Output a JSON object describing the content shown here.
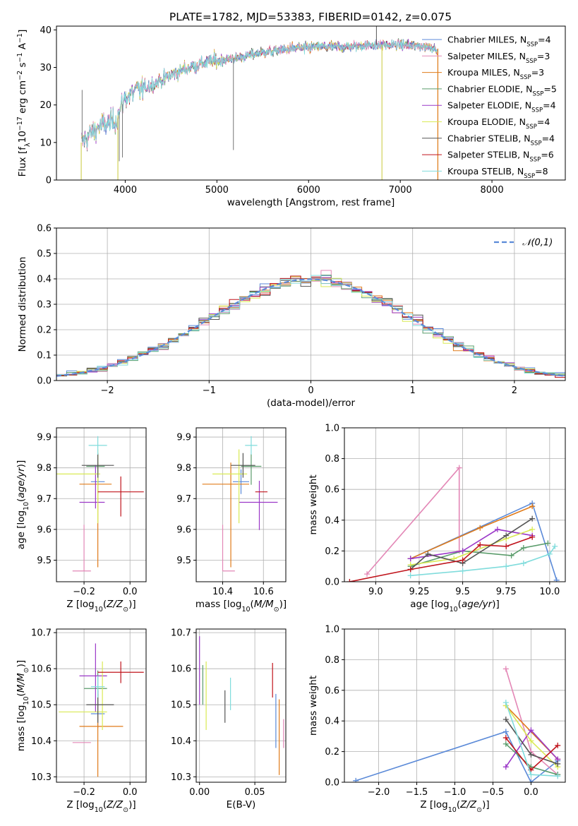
{
  "figure_title": "PLATE=1782, MJD=53383, FIBERID=0142, z=0.075",
  "colors": {
    "Chabrier MILES": "#5b8ad8",
    "Salpeter MILES": "#e387b6",
    "Kroupa MILES": "#e07b1a",
    "Chabrier ELODIE": "#5a9c6b",
    "Salpeter ELODIE": "#9b38c8",
    "Kroupa ELODIE": "#d9ea55",
    "Chabrier STELIB": "#555555",
    "Salpeter STELIB": "#c0141c",
    "Kroupa STELIB": "#80dcdc"
  },
  "chart_data": [
    {
      "id": "spectrum",
      "type": "line",
      "xlabel": "wavelength [Angstrom, rest frame]",
      "ylabel": "Flux [f_λ10^-17 erg cm^-2 s^-1 A^-1]",
      "xlim": [
        3250,
        8800
      ],
      "ylim": [
        0,
        41
      ],
      "xticks": [
        4000,
        5000,
        6000,
        7000,
        8000
      ],
      "yticks": [
        0,
        10,
        20,
        30,
        40
      ],
      "grid": false,
      "legend_position": "right",
      "legend": [
        {
          "name": "Chabrier MILES",
          "nssp": 4
        },
        {
          "name": "Salpeter MILES",
          "nssp": 3
        },
        {
          "name": "Kroupa MILES",
          "nssp": 3
        },
        {
          "name": "Chabrier ELODIE",
          "nssp": 5
        },
        {
          "name": "Salpeter ELODIE",
          "nssp": 4
        },
        {
          "name": "Kroupa ELODIE",
          "nssp": 4
        },
        {
          "name": "Chabrier STELIB",
          "nssp": 4
        },
        {
          "name": "Salpeter STELIB",
          "nssp": 6
        },
        {
          "name": "Kroupa STELIB",
          "nssp": 8
        }
      ],
      "continuum": {
        "x": [
          3520,
          3700,
          3900,
          4000,
          4100,
          4300,
          4500,
          4700,
          4900,
          5100,
          5300,
          5500,
          5800,
          6100,
          6400,
          6700,
          7000,
          7300,
          7400
        ],
        "y": [
          10,
          14,
          16,
          22,
          23.5,
          25.5,
          28,
          30,
          31.5,
          32,
          33,
          34,
          35,
          35.5,
          35.5,
          36,
          36,
          35.5,
          35
        ]
      },
      "features": [
        {
          "x": 3520,
          "y": 0
        },
        {
          "x": 3530,
          "y": 24
        },
        {
          "x": 3920,
          "y": 0
        },
        {
          "x": 3935,
          "y": 5
        },
        {
          "x": 3970,
          "y": 6
        },
        {
          "x": 5180,
          "y": 8
        },
        {
          "x": 6740,
          "y": 41
        },
        {
          "x": 6800,
          "y": 0
        },
        {
          "x": 7410,
          "y": 0
        }
      ]
    },
    {
      "id": "residuals",
      "type": "step",
      "xlabel": "(data-model)/error",
      "ylabel": "Normed distribution",
      "xlim": [
        -2.5,
        2.5
      ],
      "ylim": [
        0,
        0.6
      ],
      "xticks": [
        -2,
        -1,
        0,
        1,
        2
      ],
      "yticks": [
        0.0,
        0.1,
        0.2,
        0.3,
        0.4,
        0.5,
        0.6
      ],
      "grid": true,
      "legend_position": "top-right",
      "reference": {
        "label": "𝒩(0,1)",
        "type": "gaussian",
        "mean": 0,
        "sigma": 1
      }
    },
    {
      "id": "age_vs_Z",
      "type": "errorbar",
      "xlabel": "Z [log10(Z/Z⊙)]",
      "ylabel": "age [log10(age/yr)]",
      "xlim": [
        -0.32,
        0.07
      ],
      "ylim": [
        9.43,
        9.93
      ],
      "xticks": [
        -0.2,
        0.0
      ],
      "yticks": [
        9.5,
        9.6,
        9.7,
        9.8,
        9.9
      ],
      "grid": true,
      "points": [
        {
          "series": "Chabrier MILES",
          "x": -0.14,
          "y": 9.755,
          "xerr": [
            0.03,
            0.03
          ],
          "yerr": [
            0.04,
            0.04
          ]
        },
        {
          "series": "Salpeter MILES",
          "x": -0.2,
          "y": 9.465,
          "xerr": [
            0.05,
            0.03
          ],
          "yerr": [
            0.0,
            0.15
          ]
        },
        {
          "series": "Kroupa MILES",
          "x": -0.14,
          "y": 9.747,
          "xerr": [
            0.08,
            0.06
          ],
          "yerr": [
            0.27,
            0.07
          ]
        },
        {
          "series": "Chabrier ELODIE",
          "x": -0.14,
          "y": 9.805,
          "xerr": [
            0.05,
            0.03
          ],
          "yerr": [
            0.06,
            0.04
          ]
        },
        {
          "series": "Salpeter ELODIE",
          "x": -0.15,
          "y": 9.688,
          "xerr": [
            0.07,
            0.04
          ],
          "yerr": [
            0.02,
            0.12
          ]
        },
        {
          "series": "Kroupa ELODIE",
          "x": -0.14,
          "y": 9.78,
          "xerr": [
            0.18,
            0.01
          ],
          "yerr": [
            0.16,
            0.08
          ]
        },
        {
          "series": "Chabrier STELIB",
          "x": -0.14,
          "y": 9.808,
          "xerr": [
            0.07,
            0.07
          ],
          "yerr": [
            0.04,
            0.04
          ]
        },
        {
          "series": "Salpeter STELIB",
          "x": -0.04,
          "y": 9.722,
          "xerr": [
            0.1,
            0.1
          ],
          "yerr": [
            0.08,
            0.05
          ]
        },
        {
          "series": "Kroupa STELIB",
          "x": -0.14,
          "y": 9.873,
          "xerr": [
            0.04,
            0.04
          ],
          "yerr": [
            0.03,
            0.03
          ]
        }
      ]
    },
    {
      "id": "age_vs_mass",
      "type": "errorbar",
      "xlabel": "mass [log10(M/M⊙)]",
      "ylabel": "",
      "xlim": [
        10.27,
        10.71
      ],
      "ylim": [
        9.43,
        9.93
      ],
      "xticks": [
        10.4,
        10.6
      ],
      "yticks": [
        9.5,
        9.6,
        9.7,
        9.8,
        9.9
      ],
      "grid": true,
      "points": [
        {
          "series": "Chabrier MILES",
          "x": 10.49,
          "y": 9.755,
          "xerr": [
            0.04,
            0.04
          ],
          "yerr": [
            0.04,
            0.04
          ]
        },
        {
          "series": "Salpeter MILES",
          "x": 10.4,
          "y": 9.465,
          "xerr": [
            0.0,
            0.06
          ],
          "yerr": [
            0.0,
            0.15
          ]
        },
        {
          "series": "Kroupa MILES",
          "x": 10.44,
          "y": 9.747,
          "xerr": [
            0.14,
            0.09
          ],
          "yerr": [
            0.27,
            0.07
          ]
        },
        {
          "series": "Chabrier ELODIE",
          "x": 10.54,
          "y": 9.805,
          "xerr": [
            0.05,
            0.05
          ],
          "yerr": [
            0.06,
            0.04
          ]
        },
        {
          "series": "Salpeter ELODIE",
          "x": 10.58,
          "y": 9.688,
          "xerr": [
            0.1,
            0.09
          ],
          "yerr": [
            0.09,
            0.07
          ]
        },
        {
          "series": "Kroupa ELODIE",
          "x": 10.48,
          "y": 9.78,
          "xerr": [
            0.13,
            0.04
          ],
          "yerr": [
            0.16,
            0.08
          ]
        },
        {
          "series": "Chabrier STELIB",
          "x": 10.5,
          "y": 9.808,
          "xerr": [
            0.06,
            0.06
          ],
          "yerr": [
            0.04,
            0.04
          ]
        },
        {
          "series": "Salpeter STELIB",
          "x": 10.59,
          "y": 9.722,
          "xerr": [
            0.03,
            0.03
          ],
          "yerr": [
            0.0,
            0.0
          ]
        },
        {
          "series": "Kroupa STELIB",
          "x": 10.54,
          "y": 9.873,
          "xerr": [
            0.03,
            0.03
          ],
          "yerr": [
            0.03,
            0.03
          ]
        }
      ]
    },
    {
      "id": "weight_vs_age",
      "type": "line",
      "xlabel": "age [log10(age/yr)]",
      "ylabel": "mass weight",
      "xlim": [
        8.82,
        10.09
      ],
      "ylim": [
        0,
        1
      ],
      "xticks": [
        9.0,
        9.25,
        9.5,
        9.75,
        10.0
      ],
      "yticks": [
        0.0,
        0.2,
        0.4,
        0.6,
        0.8,
        1.0
      ],
      "grid": true,
      "series": [
        {
          "name": "Chabrier MILES",
          "x": [
            9.2,
            9.9,
            10.04
          ],
          "y": [
            0.15,
            0.51,
            0.01
          ]
        },
        {
          "name": "Salpeter MILES",
          "x": [
            8.95,
            9.48,
            9.48
          ],
          "y": [
            0.05,
            0.74,
            0.2
          ]
        },
        {
          "name": "Kroupa MILES",
          "x": [
            9.2,
            9.6,
            9.9
          ],
          "y": [
            0.15,
            0.35,
            0.49
          ]
        },
        {
          "name": "Chabrier ELODIE",
          "x": [
            9.2,
            9.5,
            9.78,
            9.85,
            9.99
          ],
          "y": [
            0.1,
            0.2,
            0.17,
            0.22,
            0.25
          ]
        },
        {
          "name": "Salpeter ELODIE",
          "x": [
            9.2,
            9.5,
            9.7,
            9.9
          ],
          "y": [
            0.15,
            0.2,
            0.34,
            0.3
          ]
        },
        {
          "name": "Kroupa ELODIE",
          "x": [
            9.2,
            9.45,
            9.75,
            9.9
          ],
          "y": [
            0.11,
            0.15,
            0.28,
            0.34
          ]
        },
        {
          "name": "Chabrier STELIB",
          "x": [
            9.2,
            9.3,
            9.5,
            9.75,
            9.9
          ],
          "y": [
            0.08,
            0.18,
            0.12,
            0.3,
            0.41
          ]
        },
        {
          "name": "Salpeter STELIB",
          "x": [
            8.85,
            9.2,
            9.5,
            9.6,
            9.75,
            9.9
          ],
          "y": [
            0.0,
            0.08,
            0.14,
            0.24,
            0.23,
            0.29
          ]
        },
        {
          "name": "Kroupa STELIB",
          "x": [
            9.2,
            9.5,
            9.75,
            9.85,
            10.0,
            10.03
          ],
          "y": [
            0.04,
            0.07,
            0.1,
            0.12,
            0.18,
            0.23
          ]
        }
      ]
    },
    {
      "id": "mass_vs_Z",
      "type": "errorbar",
      "xlabel": "Z [log10(Z/Z⊙)]",
      "ylabel": "mass [log10(M/M⊙)]",
      "xlim": [
        -0.32,
        0.07
      ],
      "ylim": [
        10.285,
        10.71
      ],
      "xticks": [
        -0.2,
        0.0
      ],
      "yticks": [
        10.3,
        10.4,
        10.5,
        10.6,
        10.7
      ],
      "grid": true,
      "points": [
        {
          "series": "Chabrier MILES",
          "x": -0.14,
          "y": 10.475,
          "xerr": [
            0.03,
            0.03
          ],
          "yerr": [
            0.04,
            0.04
          ]
        },
        {
          "series": "Salpeter MILES",
          "x": -0.2,
          "y": 10.395,
          "xerr": [
            0.05,
            0.03
          ],
          "yerr": [
            0.0,
            0.0
          ]
        },
        {
          "series": "Kroupa MILES",
          "x": -0.14,
          "y": 10.44,
          "xerr": [
            0.08,
            0.11
          ],
          "yerr": [
            0.14,
            0.09
          ]
        },
        {
          "series": "Chabrier ELODIE",
          "x": -0.14,
          "y": 10.545,
          "xerr": [
            0.06,
            0.04
          ],
          "yerr": [
            0.05,
            0.05
          ]
        },
        {
          "series": "Salpeter ELODIE",
          "x": -0.15,
          "y": 10.58,
          "xerr": [
            0.07,
            0.05
          ],
          "yerr": [
            0.1,
            0.09
          ]
        },
        {
          "series": "Kroupa ELODIE",
          "x": -0.12,
          "y": 10.48,
          "xerr": [
            0.19,
            0.02
          ],
          "yerr": [
            0.05,
            0.14
          ]
        },
        {
          "series": "Chabrier STELIB",
          "x": -0.14,
          "y": 10.5,
          "xerr": [
            0.05,
            0.07
          ],
          "yerr": [
            0.05,
            0.04
          ]
        },
        {
          "series": "Salpeter STELIB",
          "x": -0.04,
          "y": 10.59,
          "xerr": [
            0.1,
            0.1
          ],
          "yerr": [
            0.03,
            0.03
          ]
        },
        {
          "series": "Kroupa STELIB",
          "x": -0.14,
          "y": 10.55,
          "xerr": [
            0.03,
            0.03
          ],
          "yerr": [
            0.03,
            0.03
          ]
        }
      ]
    },
    {
      "id": "mass_vs_EBV",
      "type": "errorbar",
      "xlabel": "E(B-V)",
      "ylabel": "",
      "xlim": [
        -0.003,
        0.078
      ],
      "ylim": [
        10.285,
        10.71
      ],
      "xticks": [
        0.0,
        0.05
      ],
      "xticklabels": [
        "0.00",
        "0.05"
      ],
      "yticks": [
        10.3,
        10.4,
        10.5,
        10.6,
        10.7
      ],
      "grid": true,
      "points": [
        {
          "series": "Salpeter ELODIE",
          "x": 0.0,
          "y": 10.6,
          "xerr": [
            0,
            0
          ],
          "yerr": [
            0.1,
            0.09
          ]
        },
        {
          "series": "Chabrier ELODIE",
          "x": 0.003,
          "y": 10.555,
          "xerr": [
            0,
            0
          ],
          "yerr": [
            0.055,
            0.055
          ]
        },
        {
          "series": "Kroupa ELODIE",
          "x": 0.006,
          "y": 10.525,
          "xerr": [
            0,
            0
          ],
          "yerr": [
            0.095,
            0.095
          ]
        },
        {
          "series": "Chabrier STELIB",
          "x": 0.023,
          "y": 10.495,
          "xerr": [
            0,
            0
          ],
          "yerr": [
            0.045,
            0.045
          ]
        },
        {
          "series": "Kroupa STELIB",
          "x": 0.028,
          "y": 10.53,
          "xerr": [
            0,
            0
          ],
          "yerr": [
            0.045,
            0.045
          ]
        },
        {
          "series": "Salpeter STELIB",
          "x": 0.066,
          "y": 10.568,
          "xerr": [
            0,
            0
          ],
          "yerr": [
            0.048,
            0.048
          ]
        },
        {
          "series": "Chabrier MILES",
          "x": 0.069,
          "y": 10.455,
          "xerr": [
            0,
            0
          ],
          "yerr": [
            0.075,
            0.075
          ]
        },
        {
          "series": "Kroupa MILES",
          "x": 0.072,
          "y": 10.41,
          "xerr": [
            0,
            0
          ],
          "yerr": [
            0.105,
            0.105
          ]
        },
        {
          "series": "Salpeter MILES",
          "x": 0.076,
          "y": 10.42,
          "xerr": [
            0,
            0
          ],
          "yerr": [
            0.04,
            0.04
          ]
        }
      ]
    },
    {
      "id": "weight_vs_Z",
      "type": "line",
      "xlabel": "Z [log10(Z/Z⊙)]",
      "ylabel": "mass weight",
      "xlim": [
        -2.45,
        0.45
      ],
      "ylim": [
        0,
        1
      ],
      "xticks": [
        -2.0,
        -1.5,
        -1.0,
        -0.5,
        0.0
      ],
      "yticks": [
        0.0,
        0.2,
        0.4,
        0.6,
        0.8,
        1.0
      ],
      "grid": true,
      "series": [
        {
          "name": "Chabrier MILES",
          "x": [
            -2.3,
            -0.33,
            0.0,
            0.35
          ],
          "y": [
            0.01,
            0.33,
            0.0,
            0.14
          ]
        },
        {
          "name": "Salpeter MILES",
          "x": [
            -0.33,
            0.0,
            0.35
          ],
          "y": [
            0.74,
            0.2,
            0.05
          ]
        },
        {
          "name": "Kroupa MILES",
          "x": [
            -0.33,
            0.35
          ],
          "y": [
            0.5,
            0.15
          ]
        },
        {
          "name": "Chabrier ELODIE",
          "x": [
            -0.33,
            0.0,
            0.35
          ],
          "y": [
            0.25,
            0.1,
            0.05
          ]
        },
        {
          "name": "Salpeter ELODIE",
          "x": [
            -0.33,
            0.0,
            0.35
          ],
          "y": [
            0.1,
            0.34,
            0.15
          ]
        },
        {
          "name": "Kroupa ELODIE",
          "x": [
            -0.33,
            0.0,
            0.35
          ],
          "y": [
            0.5,
            0.27,
            0.1
          ]
        },
        {
          "name": "Chabrier STELIB",
          "x": [
            -0.33,
            0.0,
            0.35
          ],
          "y": [
            0.41,
            0.18,
            0.12
          ]
        },
        {
          "name": "Salpeter STELIB",
          "x": [
            -0.33,
            0.0,
            0.35
          ],
          "y": [
            0.29,
            0.08,
            0.24
          ]
        },
        {
          "name": "Kroupa STELIB",
          "x": [
            -0.33,
            0.0,
            0.35
          ],
          "y": [
            0.52,
            0.05,
            0.04
          ]
        }
      ]
    }
  ]
}
